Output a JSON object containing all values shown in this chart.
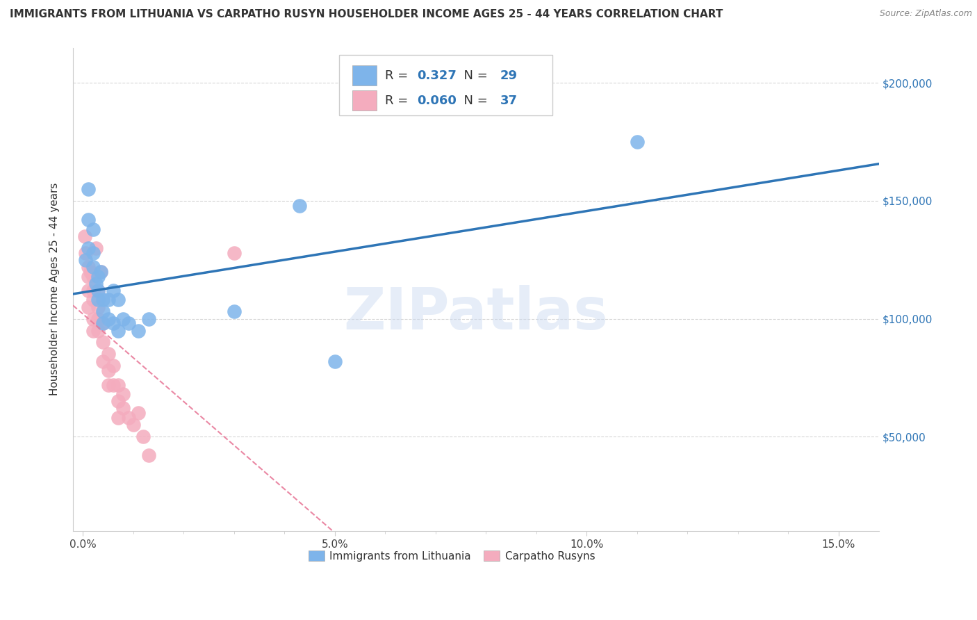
{
  "title": "IMMIGRANTS FROM LITHUANIA VS CARPATHO RUSYN HOUSEHOLDER INCOME AGES 25 - 44 YEARS CORRELATION CHART",
  "source": "Source: ZipAtlas.com",
  "ylabel": "Householder Income Ages 25 - 44 years",
  "lithuania_color": "#7EB4EA",
  "carpatho_color": "#F4ACBE",
  "line_blue": "#2E75B6",
  "line_pink": "#E87B9A",
  "lithuania_R": 0.327,
  "lithuania_N": 29,
  "carpatho_R": 0.06,
  "carpatho_N": 37,
  "legend_label_1": "Immigrants from Lithuania",
  "legend_label_2": "Carpatho Rusyns",
  "watermark": "ZIPatlas",
  "xlim": [
    -0.002,
    0.158
  ],
  "ylim": [
    10000,
    215000
  ],
  "ytick_values": [
    50000,
    100000,
    150000,
    200000
  ],
  "ytick_labels": [
    "$50,000",
    "$100,000",
    "$150,000",
    "$200,000"
  ],
  "lithuania_x": [
    0.0005,
    0.001,
    0.001,
    0.001,
    0.002,
    0.002,
    0.002,
    0.0025,
    0.003,
    0.003,
    0.003,
    0.0035,
    0.004,
    0.004,
    0.004,
    0.005,
    0.005,
    0.006,
    0.006,
    0.007,
    0.007,
    0.008,
    0.009,
    0.011,
    0.013,
    0.03,
    0.043,
    0.05,
    0.11
  ],
  "lithuania_y": [
    125000,
    155000,
    142000,
    130000,
    138000,
    128000,
    122000,
    115000,
    118000,
    112000,
    108000,
    120000,
    108000,
    103000,
    98000,
    108000,
    100000,
    112000,
    98000,
    108000,
    95000,
    100000,
    98000,
    95000,
    100000,
    103000,
    148000,
    82000,
    175000
  ],
  "carpatho_x": [
    0.0003,
    0.0005,
    0.001,
    0.001,
    0.001,
    0.001,
    0.0015,
    0.002,
    0.002,
    0.002,
    0.002,
    0.002,
    0.0025,
    0.003,
    0.003,
    0.003,
    0.003,
    0.0035,
    0.004,
    0.004,
    0.004,
    0.005,
    0.005,
    0.005,
    0.006,
    0.006,
    0.007,
    0.007,
    0.007,
    0.008,
    0.008,
    0.009,
    0.01,
    0.011,
    0.012,
    0.013,
    0.03
  ],
  "carpatho_y": [
    135000,
    128000,
    122000,
    118000,
    112000,
    105000,
    120000,
    118000,
    112000,
    108000,
    100000,
    95000,
    130000,
    112000,
    105000,
    100000,
    95000,
    120000,
    98000,
    90000,
    82000,
    85000,
    78000,
    72000,
    80000,
    72000,
    72000,
    65000,
    58000,
    68000,
    62000,
    58000,
    55000,
    60000,
    50000,
    42000,
    128000
  ]
}
